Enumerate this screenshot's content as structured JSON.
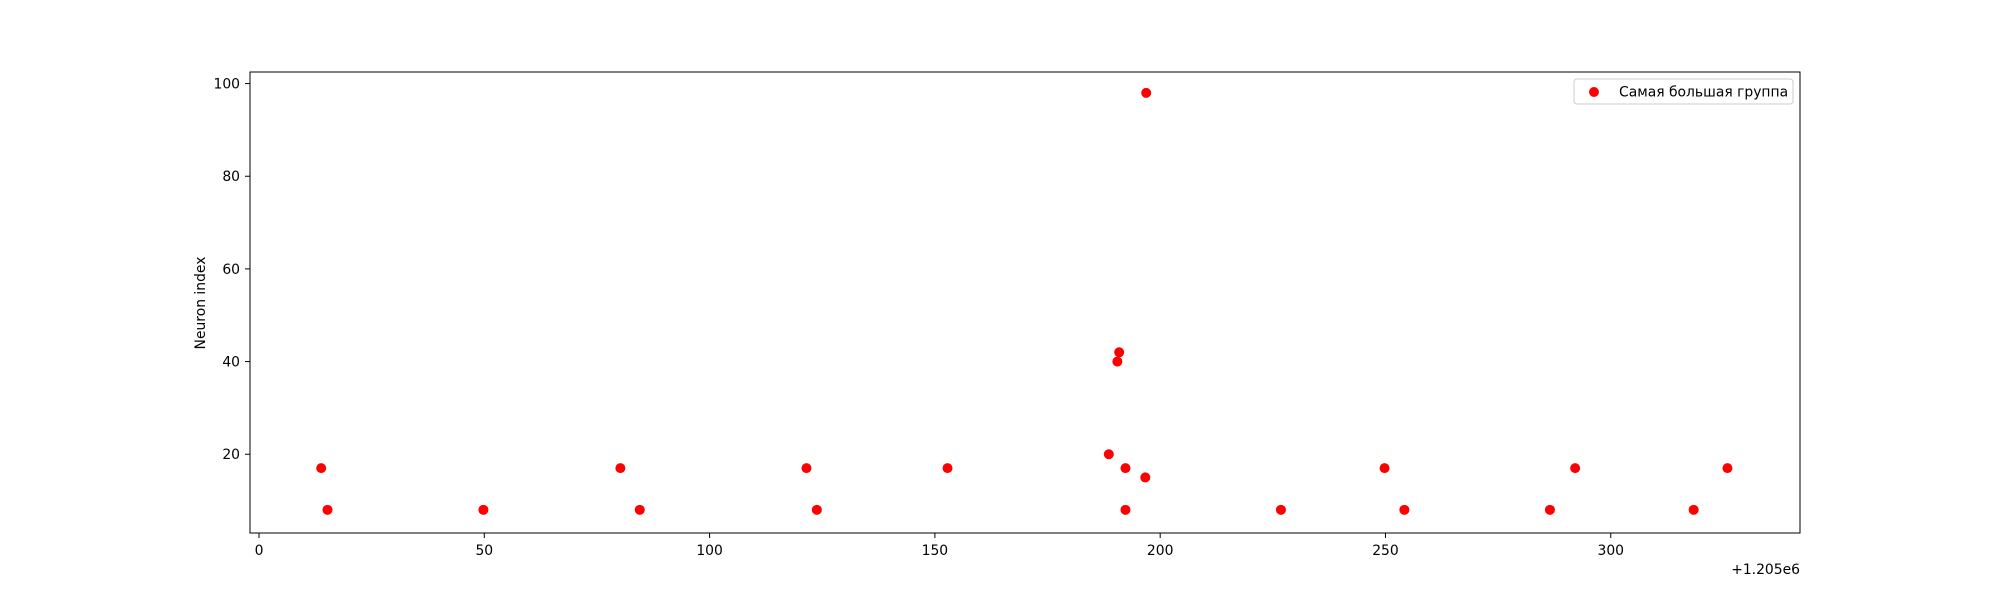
{
  "chart_data": {
    "type": "scatter",
    "title": "",
    "xlabel": "",
    "ylabel": "Neuron index",
    "x_offset_label": "+1.205e6",
    "xlim": [
      -2,
      342
    ],
    "ylim": [
      3,
      102.5
    ],
    "x_ticks": [
      0,
      50,
      100,
      150,
      200,
      250,
      300
    ],
    "x_tick_labels": [
      "0",
      "50",
      "100",
      "150",
      "200",
      "250",
      "300"
    ],
    "y_ticks": [
      20,
      40,
      60,
      80,
      100
    ],
    "y_tick_labels": [
      "20",
      "40",
      "60",
      "80",
      "100"
    ],
    "grid": false,
    "legend_position": "upper right",
    "series": [
      {
        "name": "Самая большая группа",
        "color": "#ff0000",
        "marker": "circle",
        "points": [
          {
            "x": 13.8,
            "y": 17
          },
          {
            "x": 15.2,
            "y": 8
          },
          {
            "x": 49.8,
            "y": 8
          },
          {
            "x": 80.2,
            "y": 17
          },
          {
            "x": 84.5,
            "y": 8
          },
          {
            "x": 121.5,
            "y": 17
          },
          {
            "x": 123.8,
            "y": 8
          },
          {
            "x": 152.8,
            "y": 17
          },
          {
            "x": 188.6,
            "y": 20
          },
          {
            "x": 190.5,
            "y": 40
          },
          {
            "x": 190.9,
            "y": 42
          },
          {
            "x": 192.3,
            "y": 17
          },
          {
            "x": 192.3,
            "y": 8
          },
          {
            "x": 196.7,
            "y": 15
          },
          {
            "x": 196.9,
            "y": 98
          },
          {
            "x": 226.8,
            "y": 8
          },
          {
            "x": 249.8,
            "y": 17
          },
          {
            "x": 254.2,
            "y": 8
          },
          {
            "x": 286.5,
            "y": 8
          },
          {
            "x": 292.1,
            "y": 17
          },
          {
            "x": 318.4,
            "y": 8
          },
          {
            "x": 325.9,
            "y": 17
          }
        ]
      }
    ]
  }
}
